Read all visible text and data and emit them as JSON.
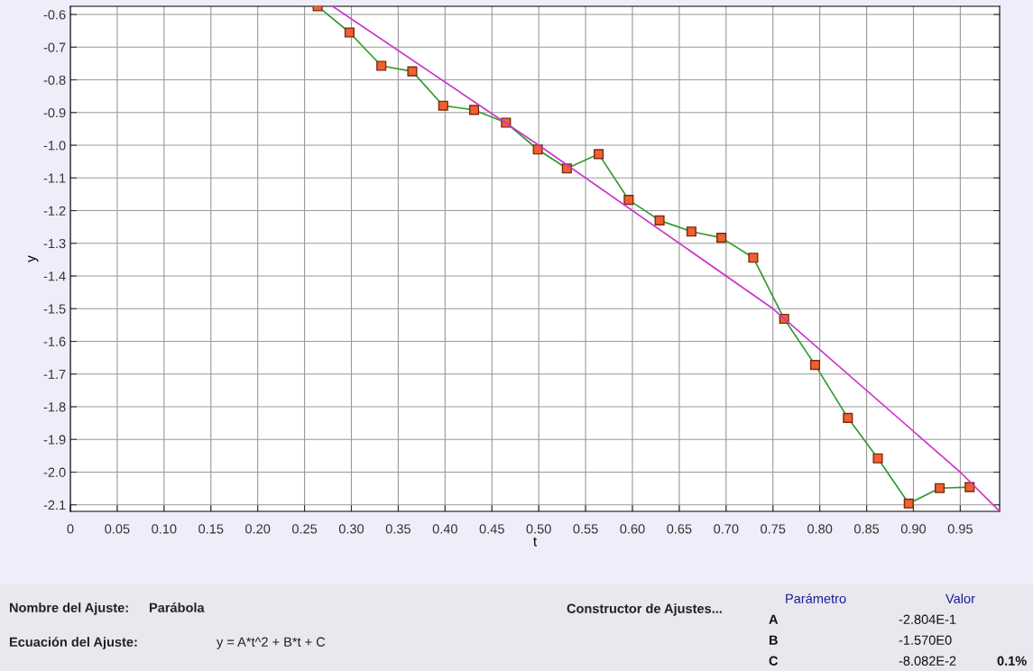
{
  "chart_data": {
    "type": "line",
    "xlabel": "t",
    "ylabel": "y",
    "xlim": [
      0,
      0.992
    ],
    "ylim": [
      -2.12,
      -0.575
    ],
    "xticks": [
      0,
      0.05,
      {
        "value": 0.1,
        "label": "0.10"
      },
      0.15,
      {
        "value": 0.2,
        "label": "0.20"
      },
      0.25,
      {
        "value": 0.3,
        "label": "0.30"
      },
      0.35,
      {
        "value": 0.4,
        "label": "0.40"
      },
      0.45,
      {
        "value": 0.5,
        "label": "0.50"
      },
      0.55,
      {
        "value": 0.6,
        "label": "0.60"
      },
      0.65,
      {
        "value": 0.7,
        "label": "0.70"
      },
      0.75,
      {
        "value": 0.8,
        "label": "0.80"
      },
      0.85,
      {
        "value": 0.9,
        "label": "0.90"
      },
      0.95
    ],
    "yticks": [
      -0.6,
      -0.7,
      -0.8,
      -0.9,
      {
        "value": -1.0,
        "label": "-1.0"
      },
      -1.1,
      -1.2,
      -1.3,
      -1.4,
      -1.5,
      -1.6,
      -1.7,
      -1.8,
      -1.9,
      {
        "value": -2.0,
        "label": "-2.0"
      },
      -2.1
    ],
    "grid": true,
    "series": [
      {
        "color": "#2e9a2e",
        "marker": "square",
        "x": [
          0.264,
          0.298,
          0.332,
          0.365,
          0.398,
          0.431,
          0.465,
          0.499,
          0.53,
          0.564,
          0.596,
          0.629,
          0.663,
          0.695,
          0.729,
          0.762,
          0.795,
          0.83,
          0.862,
          0.895,
          0.928,
          0.96
        ],
        "values": [
          -0.575,
          -0.655,
          -0.757,
          -0.774,
          -0.879,
          -0.892,
          -0.931,
          -1.013,
          -1.071,
          -1.027,
          -1.167,
          -1.23,
          -1.264,
          -1.283,
          -1.344,
          -1.531,
          -1.672,
          -1.834,
          -1.958,
          -2.096,
          -2.049,
          -2.046
        ]
      },
      {
        "color": "#cc33cc",
        "marker": "none",
        "x": [
          0.28,
          0.5,
          0.75,
          0.95,
          0.992
        ],
        "values": [
          -0.575,
          -1.0,
          -1.5,
          -2.0,
          -2.12
        ]
      }
    ],
    "annotations": [
      "Nombre del Ajuste:",
      "Parábola",
      "Constructor de Ajustes...",
      "Ecuación del Ajuste:",
      "y = A*t^2 + B*t + C",
      "Parámetro",
      "Valor",
      "A",
      "-2.804E-1",
      "B",
      "-1.570E0",
      "C",
      "-8.082E-2",
      "0.1%"
    ]
  }
}
